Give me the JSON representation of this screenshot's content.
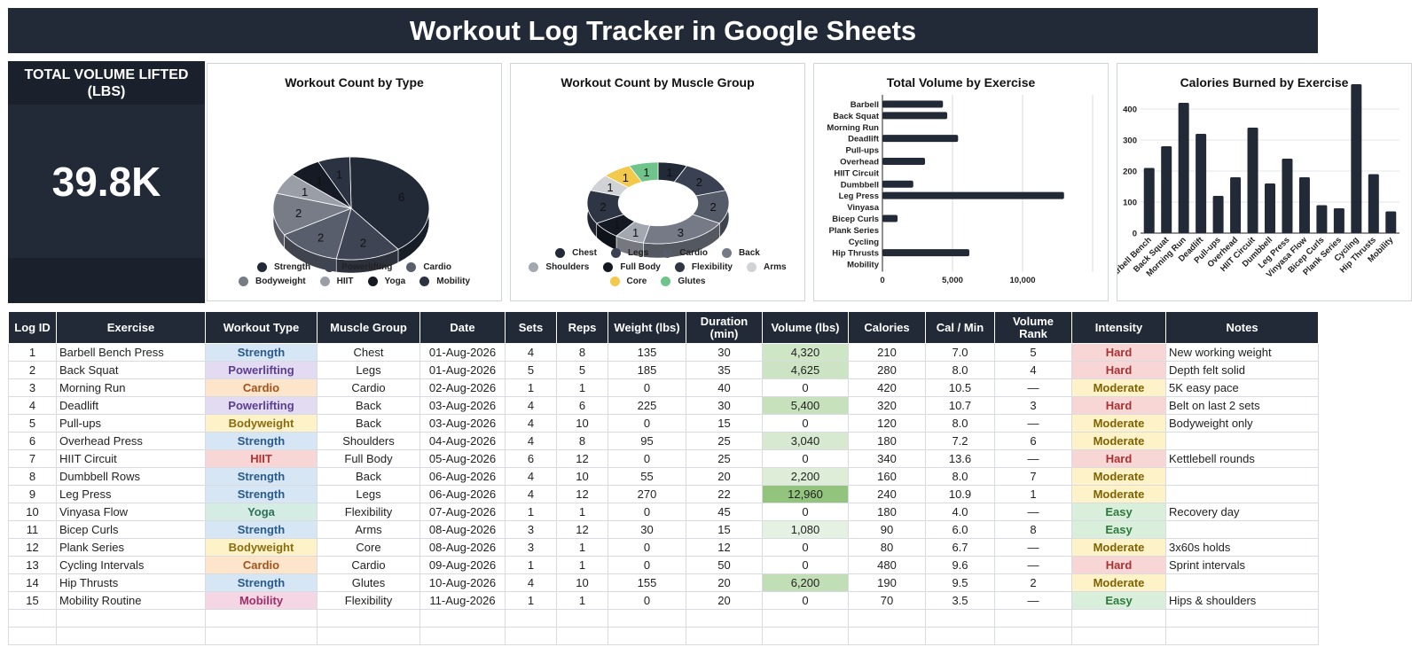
{
  "title": "Workout Log Tracker in Google Sheets",
  "kpi": {
    "label": "TOTAL VOLUME LIFTED (LBS)",
    "value": "39.8K"
  },
  "colors": {
    "header_bg": "#222a38",
    "type": {
      "Strength": {
        "bg": "#d6e6f5",
        "fg": "#2a5b8a"
      },
      "Powerlifting": {
        "bg": "#e3dbf1",
        "fg": "#5b3e8f"
      },
      "Cardio": {
        "bg": "#fde5cc",
        "fg": "#a0531a"
      },
      "Bodyweight": {
        "bg": "#fdf2c8",
        "fg": "#8a6d10"
      },
      "HIIT": {
        "bg": "#f9d6d6",
        "fg": "#b33434"
      },
      "Yoga": {
        "bg": "#d5ece4",
        "fg": "#2d7058"
      },
      "Mobility": {
        "bg": "#f4d6e4",
        "fg": "#9b2f67"
      }
    },
    "intensity": {
      "Hard": {
        "bg": "#f9d6d6",
        "fg": "#a83232"
      },
      "Moderate": {
        "bg": "#fdf2c8",
        "fg": "#7f6200"
      },
      "Easy": {
        "bg": "#d9eedb",
        "fg": "#2e7a3c"
      }
    }
  },
  "chart_data": [
    {
      "type": "pie",
      "title": "Workout Count by Type",
      "categories": [
        "Strength",
        "Powerlifting",
        "Cardio",
        "Bodyweight",
        "HIIT",
        "Yoga",
        "Mobility"
      ],
      "values": [
        6,
        2,
        2,
        2,
        1,
        1,
        1
      ],
      "colors": [
        "#222a38",
        "#3e4453",
        "#585e6c",
        "#777c87",
        "#9a9ea7",
        "#151a24",
        "#2b3242"
      ],
      "legend": "bottom"
    },
    {
      "type": "pie",
      "title": "Workout Count by Muscle Group",
      "categories": [
        "Chest",
        "Legs",
        "Cardio",
        "Back",
        "Shoulders",
        "Full Body",
        "Flexibility",
        "Arms",
        "Core",
        "Glutes"
      ],
      "values": [
        1,
        2,
        2,
        3,
        1,
        1,
        2,
        1,
        1,
        1
      ],
      "colors": [
        "#222a38",
        "#3a4152",
        "#555b69",
        "#757a86",
        "#a3a7af",
        "#141923",
        "#2e3544",
        "#d0d2d6",
        "#f2c94c",
        "#6ec48a"
      ],
      "legend": "bottom"
    },
    {
      "type": "bar",
      "orientation": "horizontal",
      "title": "Total Volume by Exercise",
      "categories": [
        "Barbell",
        "Back Squat",
        "Morning Run",
        "Deadlift",
        "Pull-ups",
        "Overhead",
        "HIIT Circuit",
        "Dumbbell",
        "Leg Press",
        "Vinyasa",
        "Bicep Curls",
        "Plank Series",
        "Cycling",
        "Hip Thrusts",
        "Mobility"
      ],
      "values": [
        4320,
        4625,
        0,
        5400,
        0,
        3040,
        0,
        2200,
        12960,
        0,
        1080,
        0,
        0,
        6200,
        0
      ],
      "xticks": [
        "0",
        "5,000",
        "10,000"
      ],
      "xlim": [
        0,
        15000
      ],
      "grid": true
    },
    {
      "type": "bar",
      "title": "Calories Burned by Exercise",
      "categories": [
        "Barbell Bench",
        "Back Squat",
        "Morning Run",
        "Deadlift",
        "Pull-ups",
        "Overhead",
        "HIIT Circuit",
        "Dumbbell",
        "Leg Press",
        "Vinyasa Flow",
        "Bicep Curls",
        "Plank Series",
        "Cycling",
        "Hip Thrusts",
        "Mobility"
      ],
      "values": [
        210,
        280,
        420,
        320,
        120,
        180,
        340,
        160,
        240,
        180,
        90,
        80,
        480,
        190,
        70
      ],
      "yticks": [
        "0",
        "100",
        "200",
        "300",
        "400"
      ],
      "ylim": [
        0,
        500
      ],
      "grid": true
    }
  ],
  "table": {
    "headers": [
      "Log ID",
      "Exercise",
      "Workout Type",
      "Muscle Group",
      "Date",
      "Sets",
      "Reps",
      "Weight (lbs)",
      "Duration (min)",
      "Volume (lbs)",
      "Calories",
      "Cal / Min",
      "Volume Rank",
      "Intensity",
      "Notes"
    ],
    "rows": [
      [
        "1",
        "Barbell Bench Press",
        "Strength",
        "Chest",
        "01-Aug-2026",
        "4",
        "8",
        "135",
        "30",
        "4,320",
        "210",
        "7.0",
        "5",
        "Hard",
        "New working weight"
      ],
      [
        "2",
        "Back Squat",
        "Powerlifting",
        "Legs",
        "01-Aug-2026",
        "5",
        "5",
        "185",
        "35",
        "4,625",
        "280",
        "8.0",
        "4",
        "Hard",
        "Depth felt solid"
      ],
      [
        "3",
        "Morning Run",
        "Cardio",
        "Cardio",
        "02-Aug-2026",
        "1",
        "1",
        "0",
        "40",
        "0",
        "420",
        "10.5",
        "—",
        "Moderate",
        "5K easy pace"
      ],
      [
        "4",
        "Deadlift",
        "Powerlifting",
        "Back",
        "03-Aug-2026",
        "4",
        "6",
        "225",
        "30",
        "5,400",
        "320",
        "10.7",
        "3",
        "Hard",
        "Belt on last 2 sets"
      ],
      [
        "5",
        "Pull-ups",
        "Bodyweight",
        "Back",
        "03-Aug-2026",
        "4",
        "10",
        "0",
        "15",
        "0",
        "120",
        "8.0",
        "—",
        "Moderate",
        "Bodyweight only"
      ],
      [
        "6",
        "Overhead Press",
        "Strength",
        "Shoulders",
        "04-Aug-2026",
        "4",
        "8",
        "95",
        "25",
        "3,040",
        "180",
        "7.2",
        "6",
        "Moderate",
        ""
      ],
      [
        "7",
        "HIIT Circuit",
        "HIIT",
        "Full Body",
        "05-Aug-2026",
        "6",
        "12",
        "0",
        "25",
        "0",
        "340",
        "13.6",
        "—",
        "Hard",
        "Kettlebell rounds"
      ],
      [
        "8",
        "Dumbbell Rows",
        "Strength",
        "Back",
        "06-Aug-2026",
        "4",
        "10",
        "55",
        "20",
        "2,200",
        "160",
        "8.0",
        "7",
        "Moderate",
        ""
      ],
      [
        "9",
        "Leg Press",
        "Strength",
        "Legs",
        "06-Aug-2026",
        "4",
        "12",
        "270",
        "22",
        "12,960",
        "240",
        "10.9",
        "1",
        "Moderate",
        ""
      ],
      [
        "10",
        "Vinyasa Flow",
        "Yoga",
        "Flexibility",
        "07-Aug-2026",
        "1",
        "1",
        "0",
        "45",
        "0",
        "180",
        "4.0",
        "—",
        "Easy",
        "Recovery day"
      ],
      [
        "11",
        "Bicep Curls",
        "Strength",
        "Arms",
        "08-Aug-2026",
        "3",
        "12",
        "30",
        "15",
        "1,080",
        "90",
        "6.0",
        "8",
        "Easy",
        ""
      ],
      [
        "12",
        "Plank Series",
        "Bodyweight",
        "Core",
        "08-Aug-2026",
        "3",
        "1",
        "0",
        "12",
        "0",
        "80",
        "6.7",
        "—",
        "Moderate",
        "3x60s holds"
      ],
      [
        "13",
        "Cycling Intervals",
        "Cardio",
        "Cardio",
        "09-Aug-2026",
        "1",
        "1",
        "0",
        "50",
        "0",
        "480",
        "9.6",
        "—",
        "Hard",
        "Sprint intervals"
      ],
      [
        "14",
        "Hip Thrusts",
        "Strength",
        "Glutes",
        "10-Aug-2026",
        "4",
        "10",
        "155",
        "20",
        "6,200",
        "190",
        "9.5",
        "2",
        "Moderate",
        ""
      ],
      [
        "15",
        "Mobility Routine",
        "Mobility",
        "Flexibility",
        "11-Aug-2026",
        "1",
        "1",
        "0",
        "20",
        "0",
        "70",
        "3.5",
        "—",
        "Easy",
        "Hips & shoulders"
      ]
    ],
    "empty_rows": 2
  }
}
